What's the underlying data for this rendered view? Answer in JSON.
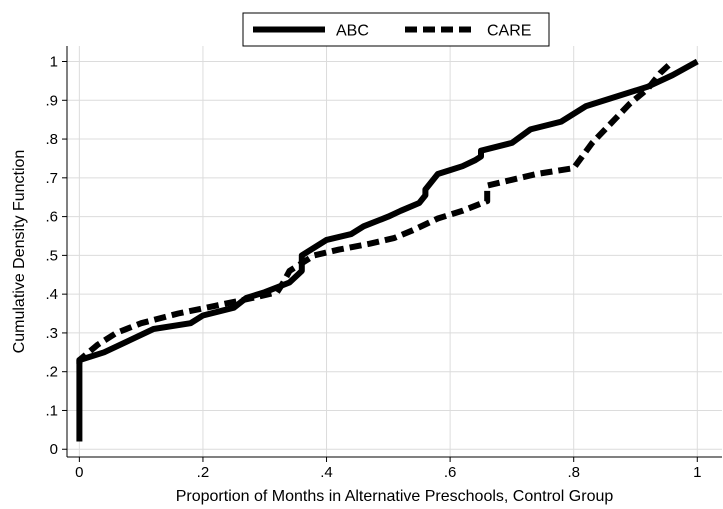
{
  "chart_data": {
    "type": "line",
    "title": "",
    "xlabel": "Proportion of Months in Alternative Preschools, Control Group",
    "ylabel": "Cumulative Density Function",
    "xlim": [
      -0.02,
      1.04
    ],
    "ylim": [
      -0.02,
      1.04
    ],
    "x_ticks": [
      {
        "value": 0,
        "label": "0"
      },
      {
        "value": 0.2,
        "label": ".2"
      },
      {
        "value": 0.4,
        "label": ".4"
      },
      {
        "value": 0.6,
        "label": ".6"
      },
      {
        "value": 0.8,
        "label": ".8"
      },
      {
        "value": 1,
        "label": "1"
      }
    ],
    "y_ticks": [
      {
        "value": 0,
        "label": "0"
      },
      {
        "value": 0.1,
        "label": ".1"
      },
      {
        "value": 0.2,
        "label": ".2"
      },
      {
        "value": 0.3,
        "label": ".3"
      },
      {
        "value": 0.4,
        "label": ".4"
      },
      {
        "value": 0.5,
        "label": ".5"
      },
      {
        "value": 0.6,
        "label": ".6"
      },
      {
        "value": 0.7,
        "label": ".7"
      },
      {
        "value": 0.8,
        "label": ".8"
      },
      {
        "value": 0.9,
        "label": ".9"
      },
      {
        "value": 1,
        "label": "1"
      }
    ],
    "grid": true,
    "legend_position": "top-center",
    "series": [
      {
        "name": "ABC",
        "style": "solid",
        "color": "#000000",
        "x": [
          0,
          0,
          0,
          0.04,
          0.08,
          0.12,
          0.18,
          0.2,
          0.25,
          0.27,
          0.3,
          0.34,
          0.36,
          0.36,
          0.4,
          0.44,
          0.46,
          0.5,
          0.52,
          0.55,
          0.56,
          0.56,
          0.58,
          0.6,
          0.62,
          0.64,
          0.65,
          0.65,
          0.7,
          0.73,
          0.78,
          0.82,
          0.87,
          0.92,
          0.96,
          1.0
        ],
        "y": [
          0.02,
          0.12,
          0.23,
          0.25,
          0.28,
          0.31,
          0.325,
          0.345,
          0.365,
          0.39,
          0.405,
          0.43,
          0.46,
          0.5,
          0.54,
          0.555,
          0.575,
          0.6,
          0.615,
          0.635,
          0.655,
          0.67,
          0.71,
          0.72,
          0.73,
          0.745,
          0.755,
          0.77,
          0.79,
          0.825,
          0.845,
          0.885,
          0.91,
          0.935,
          0.965,
          1.0
        ]
      },
      {
        "name": "CARE",
        "style": "dashed",
        "color": "#000000",
        "x": [
          0,
          0,
          0.03,
          0.06,
          0.1,
          0.16,
          0.22,
          0.28,
          0.32,
          0.33,
          0.34,
          0.38,
          0.42,
          0.47,
          0.51,
          0.54,
          0.58,
          0.62,
          0.66,
          0.66,
          0.7,
          0.74,
          0.8,
          0.83,
          0.86,
          0.89,
          0.92,
          0.94,
          0.96
        ],
        "y": [
          0.22,
          0.23,
          0.27,
          0.3,
          0.325,
          0.35,
          0.37,
          0.39,
          0.405,
          0.43,
          0.46,
          0.5,
          0.515,
          0.53,
          0.545,
          0.565,
          0.595,
          0.615,
          0.64,
          0.68,
          0.695,
          0.71,
          0.725,
          0.79,
          0.84,
          0.89,
          0.93,
          0.97,
          1.0
        ]
      }
    ]
  }
}
